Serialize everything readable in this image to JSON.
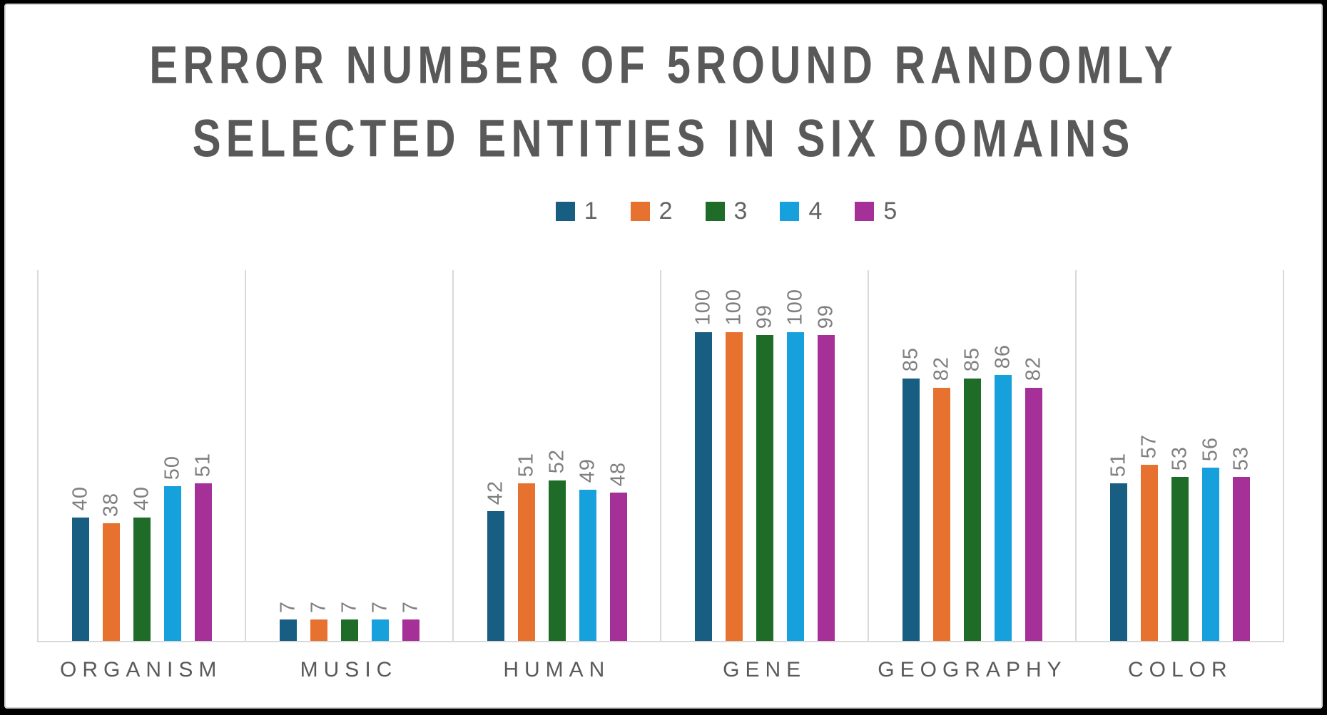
{
  "chart_data": {
    "type": "bar",
    "title": "ERROR NUMBER OF 5ROUND RANDOMLY SELECTED ENTITIES IN SIX DOMAINS",
    "categories": [
      "ORGANISM",
      "MUSIC",
      "HUMAN",
      "GENE",
      "GEOGRAPHY",
      "COLOR"
    ],
    "series": [
      {
        "name": "1",
        "color": "#175E82",
        "values": [
          40,
          7,
          42,
          100,
          85,
          51
        ]
      },
      {
        "name": "2",
        "color": "#E7722F",
        "values": [
          38,
          7,
          51,
          100,
          82,
          57
        ]
      },
      {
        "name": "3",
        "color": "#1E6C28",
        "values": [
          40,
          7,
          52,
          99,
          85,
          53
        ]
      },
      {
        "name": "4",
        "color": "#16A0DC",
        "values": [
          50,
          7,
          49,
          100,
          86,
          56
        ]
      },
      {
        "name": "5",
        "color": "#A53098",
        "values": [
          51,
          7,
          48,
          99,
          82,
          53
        ]
      }
    ],
    "ylim": [
      0,
      120
    ],
    "xlabel": "",
    "ylabel": "",
    "legend_position": "top-center",
    "data_labels_rotation_deg": -90,
    "gridlines": "vertical category separators only",
    "colors": {
      "title_text": "#595959",
      "category_labels": "#595959",
      "data_labels": "#7F7F7F",
      "gridline": "#D9D9D9",
      "outer_frame": "#000000",
      "background": "#FFFFFF"
    }
  }
}
